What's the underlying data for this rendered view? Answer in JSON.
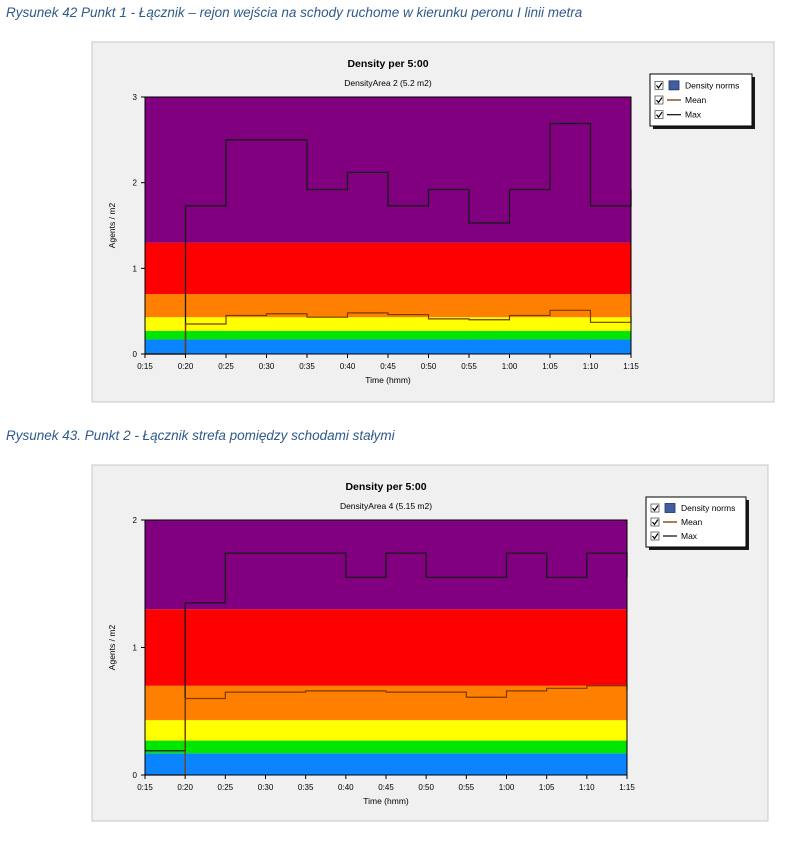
{
  "captions": [
    "Rysunek 42 Punkt 1 - Łącznik – rejon wejścia na schody ruchome w kierunku peronu I linii metra",
    "Rysunek 43. Punkt 2 - Łącznik strefa pomiędzy schodami stałymi"
  ],
  "colors": {
    "caption": "#2e5a8c",
    "band_blue": "#0a84ff",
    "band_green": "#00e600",
    "band_yellow": "#ffff00",
    "band_orange": "#ff8000",
    "band_red": "#ff0000",
    "band_purple": "#800080",
    "panel_bg": "#f0f0f0",
    "mean_line": "#7a3a00",
    "max_line": "#1a1a1a"
  },
  "chart_data": [
    {
      "type": "line",
      "title": "Density per 5:00",
      "subtitle": "DensityArea 2 (5.2 m2)",
      "xlabel": "Time (hmm)",
      "ylabel": "Agents / m2",
      "x_ticks": [
        "0:15",
        "0:20",
        "0:25",
        "0:30",
        "0:35",
        "0:40",
        "0:45",
        "0:50",
        "0:55",
        "1:00",
        "1:05",
        "1:10",
        "1:15"
      ],
      "y_ticks": [
        "0",
        "1",
        "2",
        "3"
      ],
      "ylim": [
        0,
        3
      ],
      "xlim_minutes": [
        15,
        75
      ],
      "legend": [
        "Density norms",
        "Mean",
        "Max"
      ],
      "legend_position": "top-right",
      "bands": [
        {
          "from": 0,
          "to": 0.17,
          "color": "#0a84ff"
        },
        {
          "from": 0.17,
          "to": 0.27,
          "color": "#00e600"
        },
        {
          "from": 0.27,
          "to": 0.43,
          "color": "#ffff00"
        },
        {
          "from": 0.43,
          "to": 0.7,
          "color": "#ff8000"
        },
        {
          "from": 0.7,
          "to": 1.3,
          "color": "#ff0000"
        },
        {
          "from": 1.3,
          "to": 3,
          "color": "#800080"
        }
      ],
      "series": [
        {
          "name": "Max",
          "steps": [
            0,
            1.73,
            2.5,
            2.5,
            1.92,
            2.12,
            1.73,
            1.92,
            1.53,
            1.92,
            2.69,
            1.73
          ],
          "final": 1.92
        },
        {
          "name": "Mean",
          "steps": [
            0,
            0.35,
            0.45,
            0.47,
            0.43,
            0.48,
            0.46,
            0.41,
            0.4,
            0.45,
            0.51,
            0.37
          ],
          "final": 0.44
        }
      ]
    },
    {
      "type": "line",
      "title": "Density per 5:00",
      "subtitle": "DensityArea 4 (5.15 m2)",
      "xlabel": "Time (hmm)",
      "ylabel": "Agents / m2",
      "x_ticks": [
        "0:15",
        "0:20",
        "0:25",
        "0:30",
        "0:35",
        "0:40",
        "0:45",
        "0:50",
        "0:55",
        "1:00",
        "1:05",
        "1:10",
        "1:15"
      ],
      "y_ticks": [
        "0",
        "1",
        "2"
      ],
      "ylim": [
        0,
        2
      ],
      "xlim_minutes": [
        15,
        75
      ],
      "legend": [
        "Density norms",
        "Mean",
        "Max"
      ],
      "legend_position": "top-right",
      "bands": [
        {
          "from": 0,
          "to": 0.17,
          "color": "#0a84ff"
        },
        {
          "from": 0.17,
          "to": 0.27,
          "color": "#00e600"
        },
        {
          "from": 0.27,
          "to": 0.43,
          "color": "#ffff00"
        },
        {
          "from": 0.43,
          "to": 0.7,
          "color": "#ff8000"
        },
        {
          "from": 0.7,
          "to": 1.3,
          "color": "#ff0000"
        },
        {
          "from": 1.3,
          "to": 2,
          "color": "#800080"
        }
      ],
      "series": [
        {
          "name": "Max",
          "steps": [
            0.19,
            1.35,
            1.74,
            1.74,
            1.74,
            1.55,
            1.74,
            1.55,
            1.55,
            1.74,
            1.55,
            1.74
          ],
          "final": 1.55
        },
        {
          "name": "Mean",
          "steps": [
            0,
            0.6,
            0.65,
            0.65,
            0.66,
            0.66,
            0.65,
            0.65,
            0.61,
            0.66,
            0.68,
            0.7
          ],
          "final": 0.66
        }
      ]
    }
  ]
}
